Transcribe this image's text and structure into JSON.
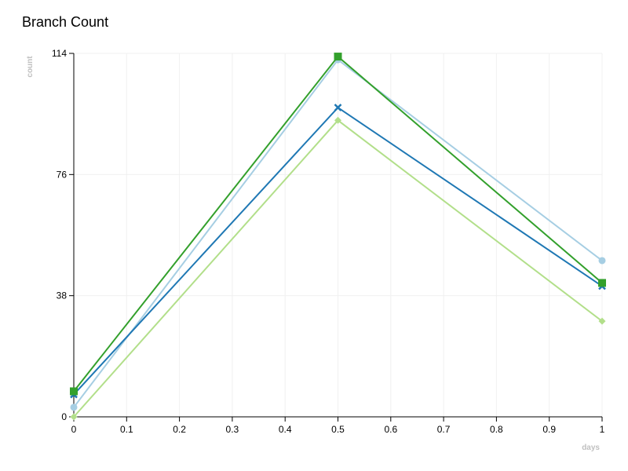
{
  "chart_data": {
    "type": "line",
    "title": "Branch Count",
    "xlabel": "days",
    "ylabel": "count",
    "xlim": [
      0,
      1
    ],
    "ylim": [
      0,
      114
    ],
    "x_ticks": [
      "0",
      "0.1",
      "0.2",
      "0.3",
      "0.4",
      "0.5",
      "0.6",
      "0.7",
      "0.8",
      "0.9",
      "1"
    ],
    "x_tick_values": [
      0,
      0.1,
      0.2,
      0.3,
      0.4,
      0.5,
      0.6,
      0.7,
      0.8,
      0.9,
      1
    ],
    "y_ticks": [
      "0",
      "38",
      "76",
      "114"
    ],
    "y_tick_values": [
      0,
      38,
      76,
      114
    ],
    "grid": true,
    "legend": "none",
    "x": [
      0,
      0.5,
      1
    ],
    "series": [
      {
        "color": "#a6cee3",
        "marker": "circle",
        "values": [
          3,
          112,
          49
        ]
      },
      {
        "color": "#1f78b4",
        "marker": "cross",
        "values": [
          7,
          97,
          41
        ]
      },
      {
        "color": "#b2df8a",
        "marker": "diamond",
        "values": [
          0,
          93,
          30
        ]
      },
      {
        "color": "#33a02c",
        "marker": "square",
        "values": [
          8,
          113,
          42
        ]
      }
    ]
  }
}
